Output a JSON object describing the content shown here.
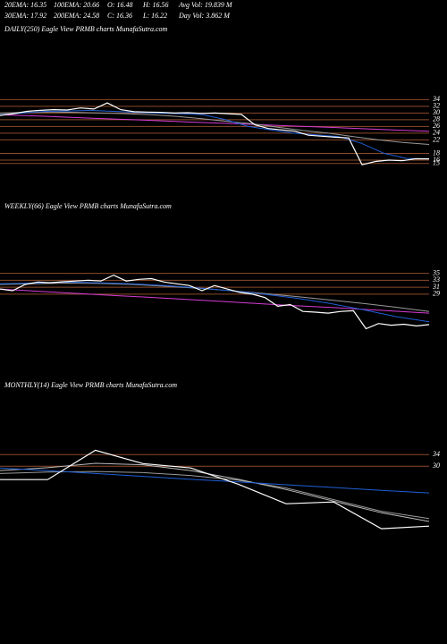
{
  "header": {
    "row1": [
      "20EMA: 16.35",
      "100EMA: 20.66",
      "O: 16.48",
      "H: 16.56",
      "Avg Vol: 19.839 M"
    ],
    "row2": [
      "30EMA: 17.92",
      "200EMA: 24.58",
      "C: 16.36",
      "L: 16.22",
      "Day Vol: 3.862 M"
    ]
  },
  "chart_data": [
    {
      "type": "line",
      "title": "DAILY(250) Eagle  View  PRMB charts MunafaSutra.com",
      "ylim": [
        8,
        53
      ],
      "yticks": [
        34,
        32,
        30,
        28,
        26,
        24,
        22,
        18,
        16,
        15
      ],
      "grid": true,
      "grid_color": "#8b4a2a",
      "series": [
        {
          "color": "#d63bd6",
          "values": [
            29.5,
            29,
            28.4,
            27.9,
            27.3,
            26.8,
            26.2,
            25.7,
            25.1,
            24.6
          ]
        },
        {
          "color": "#999999",
          "values": [
            30,
            30.2,
            30.3,
            30.2,
            30,
            29.8,
            29.5,
            29,
            28.3,
            27.5,
            26.8,
            25.8,
            24.8,
            24,
            23,
            22,
            21.2,
            20.66
          ]
        },
        {
          "color": "#1f5fd6",
          "values": [
            29.5,
            30,
            30.5,
            30.6,
            30.8,
            30.5,
            30.2,
            30,
            29.8,
            29.5,
            28,
            26,
            25,
            24,
            23.5,
            23,
            21,
            18,
            16.5,
            16.35
          ]
        },
        {
          "color": "#ffffff",
          "values": [
            29.3,
            29.8,
            30.5,
            30.8,
            31,
            30.9,
            31.5,
            31.2,
            33,
            31,
            30.4,
            30.3,
            30.2,
            30,
            30.1,
            29.9,
            30,
            29.8,
            29.6,
            26.5,
            25.4,
            25,
            24.6,
            23.4,
            23.1,
            22.8,
            22.6,
            14.6,
            15.6,
            16,
            15.8,
            16.4,
            16.36
          ]
        }
      ]
    },
    {
      "type": "line",
      "title": "WEEKLY(66) Eagle  View  PRMB charts MunafaSutra.com",
      "ylim": [
        8,
        52
      ],
      "yticks": [
        35,
        33,
        31,
        29
      ],
      "grid": true,
      "grid_color": "#8b4a2a",
      "series": [
        {
          "color": "#d63bd6",
          "values": [
            30.5,
            29.7,
            28.9,
            28.2,
            27.4,
            26.6,
            25.8,
            25.1,
            24.3,
            23.5
          ]
        },
        {
          "color": "#999999",
          "values": [
            31.8,
            32,
            32.2,
            32.1,
            31.8,
            31.3,
            30.7,
            30,
            29.2,
            28.3,
            27.3,
            26.3,
            25.2,
            24
          ]
        },
        {
          "color": "#1f5fd6",
          "values": [
            32,
            32.2,
            32.5,
            32.3,
            32,
            31.5,
            30.8,
            30,
            29,
            27.8,
            26.3,
            24.5,
            22.5,
            21
          ]
        },
        {
          "color": "#ffffff",
          "values": [
            30.5,
            30,
            31.8,
            32.5,
            32.3,
            32.6,
            32.8,
            33,
            32.8,
            34.5,
            32.8,
            33.3,
            33.5,
            32.5,
            32,
            31.5,
            30,
            31.5,
            30.5,
            29.5,
            29,
            28,
            25.5,
            26,
            24,
            23.8,
            23.5,
            24,
            24.2,
            19,
            20.5,
            20,
            20.3,
            19.8,
            20.2
          ]
        }
      ]
    },
    {
      "type": "line",
      "title": "MONTHLY(14) Eagle  View  PRMB charts MunafaSutra.com",
      "ylim": [
        -25,
        55
      ],
      "yticks": [
        34,
        30
      ],
      "grid": true,
      "grid_color": "#8b4a2a",
      "series": [
        {
          "color": "#999999",
          "values": [
            27.5,
            28,
            28.2,
            27.8,
            26.8,
            25.2,
            22.5,
            18.5,
            14.5,
            12
          ]
        },
        {
          "color": "#bbbbbb",
          "values": [
            28.5,
            29.5,
            31,
            30.5,
            28.5,
            25.5,
            22,
            18,
            14,
            11
          ]
        },
        {
          "color": "#1f5fd6",
          "values": [
            29.4,
            28.5,
            27.5,
            26.5,
            25.5,
            24.6,
            23.6,
            22.7,
            21.7,
            20.8
          ]
        },
        {
          "color": "#ffffff",
          "values": [
            25.4,
            25.4,
            35.5,
            30.9,
            29.4,
            23.8,
            17.1,
            17.7,
            8.5,
            9.4
          ]
        }
      ]
    }
  ]
}
